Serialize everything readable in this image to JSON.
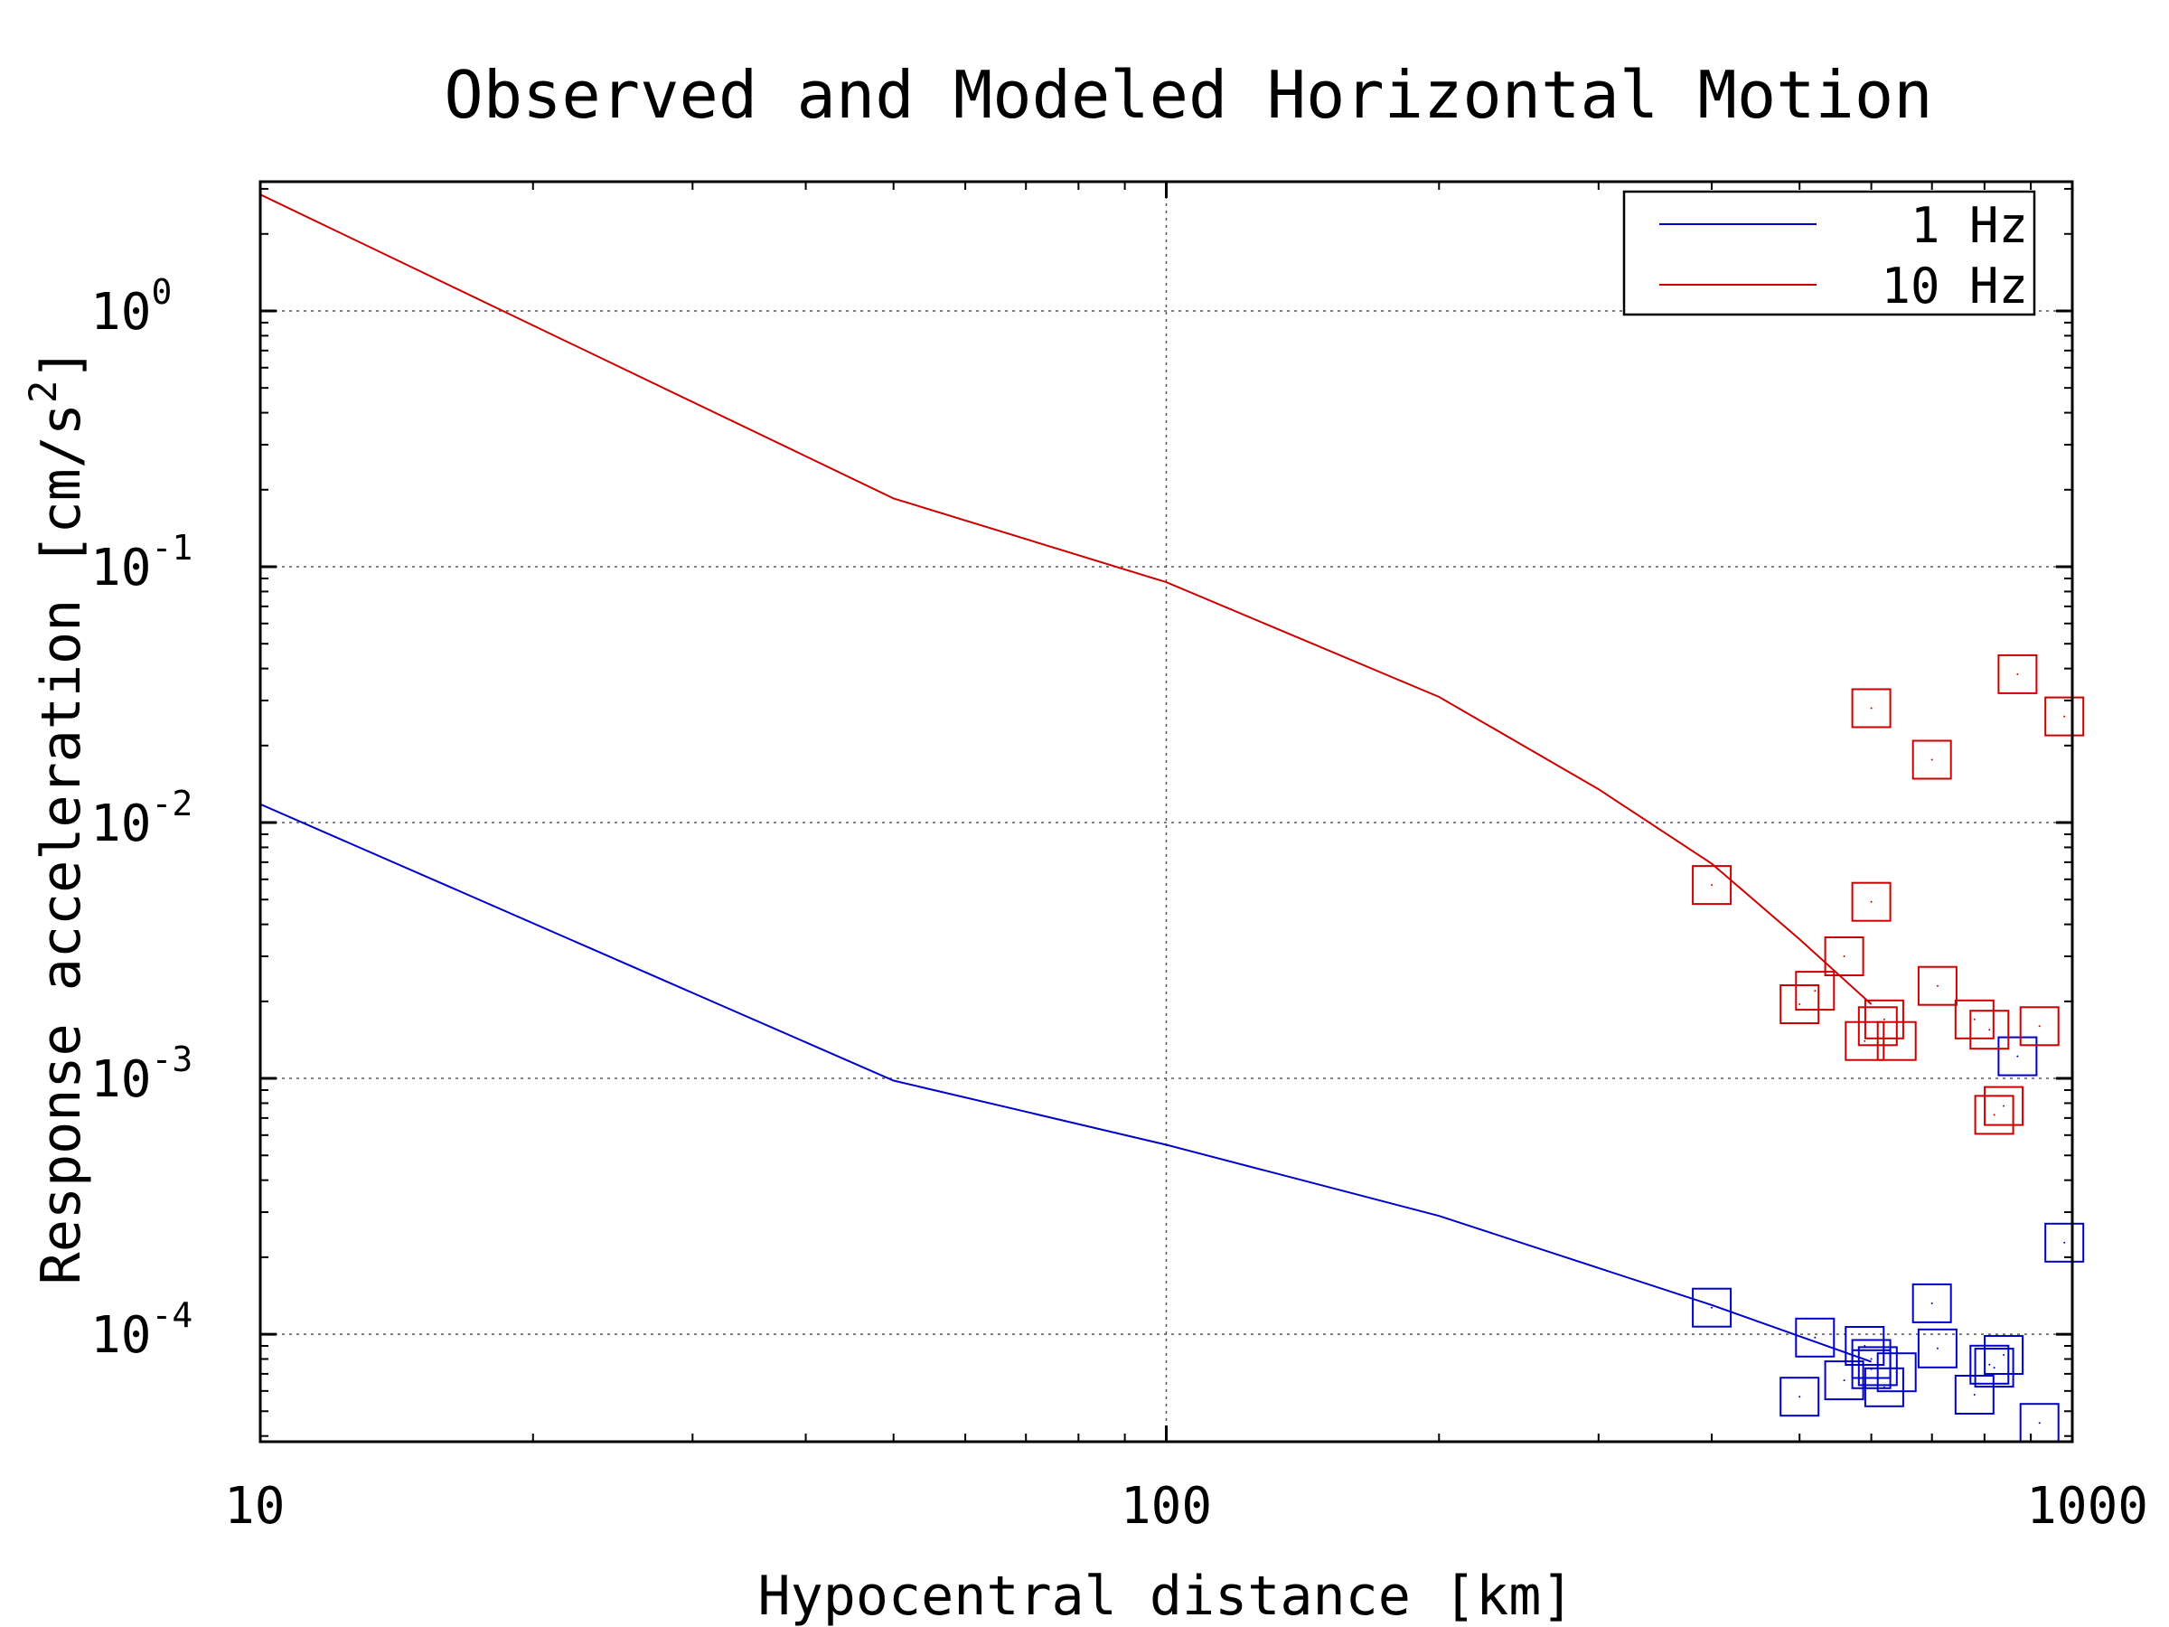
{
  "chart_data": {
    "type": "scatter",
    "title": "Observed and Modeled Horizontal Motion",
    "xlabel": "Hypocentral distance [km]",
    "ylabel": "Response acceleration [cm/s^2]",
    "xscale": "log",
    "yscale": "log",
    "xlim": [
      10,
      1000
    ],
    "ylim": [
      3.8e-05,
      3.2
    ],
    "grid": true,
    "legend_position": "top-right",
    "x_ticks": [
      "10",
      "100",
      "1000"
    ],
    "y_ticks": [
      {
        "base": "10",
        "exp": "-4",
        "value": 0.0001
      },
      {
        "base": "10",
        "exp": "-3",
        "value": 0.001
      },
      {
        "base": "10",
        "exp": "-2",
        "value": 0.01
      },
      {
        "base": "10",
        "exp": "-1",
        "value": 0.1
      },
      {
        "base": "10",
        "exp": "0",
        "value": 1
      }
    ],
    "series": [
      {
        "name": "1 Hz",
        "color": "#0000cc",
        "model_line": {
          "x": [
            10,
            50,
            100,
            200,
            400,
            600
          ],
          "y": [
            0.0118,
            0.00098,
            0.00055,
            0.00029,
            0.00013,
            7.8e-05
          ]
        },
        "observed": {
          "x": [
            400,
            500,
            520,
            560,
            590,
            600,
            600,
            610,
            620,
            640,
            700,
            710,
            780,
            810,
            820,
            840,
            870,
            920,
            980
          ],
          "y": [
            0.000127,
            5.7e-05,
            9.7e-05,
            6.6e-05,
            9e-05,
            7.3e-05,
            8e-05,
            7.5e-05,
            6.2e-05,
            7.1e-05,
            0.000132,
            8.8e-05,
            5.8e-05,
            7.6e-05,
            7.4e-05,
            8.3e-05,
            0.00122,
            4.5e-05,
            0.000228
          ]
        }
      },
      {
        "name": "10 Hz",
        "color": "#cc0000",
        "model_line": {
          "x": [
            10,
            50,
            100,
            200,
            300,
            400,
            500,
            600
          ],
          "y": [
            2.85,
            0.185,
            0.087,
            0.031,
            0.0135,
            0.0069,
            0.0035,
            0.00195
          ]
        },
        "observed": {
          "x": [
            400,
            500,
            520,
            560,
            590,
            600,
            600,
            610,
            620,
            640,
            700,
            710,
            780,
            810,
            820,
            840,
            870,
            920,
            980
          ],
          "y": [
            0.0057,
            0.00195,
            0.0022,
            0.003,
            0.0014,
            0.028,
            0.0049,
            0.0016,
            0.0017,
            0.0014,
            0.0176,
            0.0023,
            0.0017,
            0.00155,
            0.00072,
            0.00078,
            0.038,
            0.0016,
            0.026
          ]
        }
      }
    ]
  }
}
